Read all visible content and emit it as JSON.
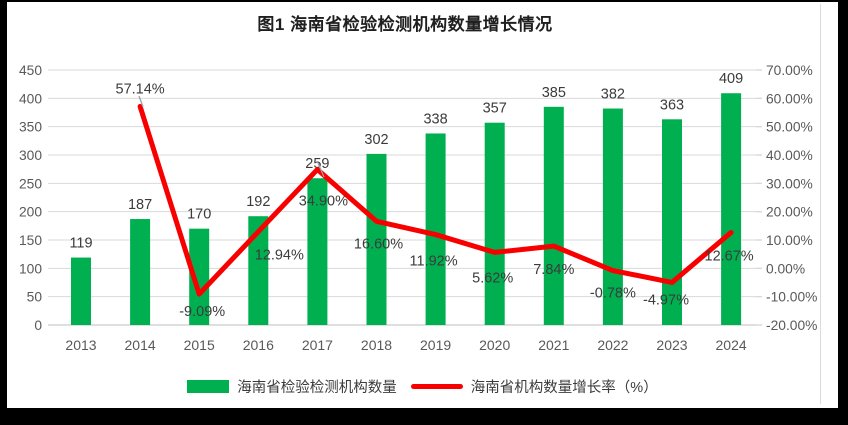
{
  "title": "图1 海南省检验检测机构数量增长情况",
  "chart_data": {
    "type": "combo_bar_line",
    "categories": [
      "2013",
      "2014",
      "2015",
      "2016",
      "2017",
      "2018",
      "2019",
      "2020",
      "2021",
      "2022",
      "2023",
      "2024"
    ],
    "series": [
      {
        "name": "海南省检验检测机构数量",
        "type": "bar",
        "axis": "left",
        "color": "#00B050",
        "values": [
          119,
          187,
          170,
          192,
          259,
          302,
          338,
          357,
          385,
          382,
          363,
          409
        ],
        "labels": [
          "119",
          "187",
          "170",
          "192",
          "259",
          "302",
          "338",
          "357",
          "385",
          "382",
          "363",
          "409"
        ]
      },
      {
        "name": "海南省机构数量增长率（%）",
        "type": "line",
        "axis": "right",
        "color": "#F80000",
        "values": [
          null,
          57.14,
          -9.09,
          12.94,
          34.9,
          16.6,
          11.92,
          5.62,
          7.84,
          -0.78,
          -4.97,
          12.67
        ],
        "labels": [
          "",
          "57.14%",
          "-9.09%",
          "12.94%",
          "34.90%",
          "16.60%",
          "11.92%",
          "5.62%",
          "7.84%",
          "-0.78%",
          "-4.97%",
          "12.67%"
        ]
      }
    ],
    "left_axis": {
      "min": 0,
      "max": 450,
      "step": 50,
      "ticks": [
        "0",
        "50",
        "100",
        "150",
        "200",
        "250",
        "300",
        "350",
        "400",
        "450"
      ]
    },
    "right_axis": {
      "min": -20,
      "max": 70,
      "step": 10,
      "ticks": [
        "-20.00%",
        "-10.00%",
        "0.00%",
        "10.00%",
        "20.00%",
        "30.00%",
        "40.00%",
        "50.00%",
        "60.00%",
        "70.00%"
      ]
    },
    "grid": true,
    "legend_position": "bottom"
  },
  "colors": {
    "bar": "#00B050",
    "line": "#F80000",
    "grid": "#D9D9D9",
    "axis_line": "#BFBFBF",
    "axis_text": "#595959",
    "label_text": "#3b3b3b",
    "leader": "#A0A0A0",
    "paper": "#FFFFFF",
    "frame": "#000000"
  }
}
